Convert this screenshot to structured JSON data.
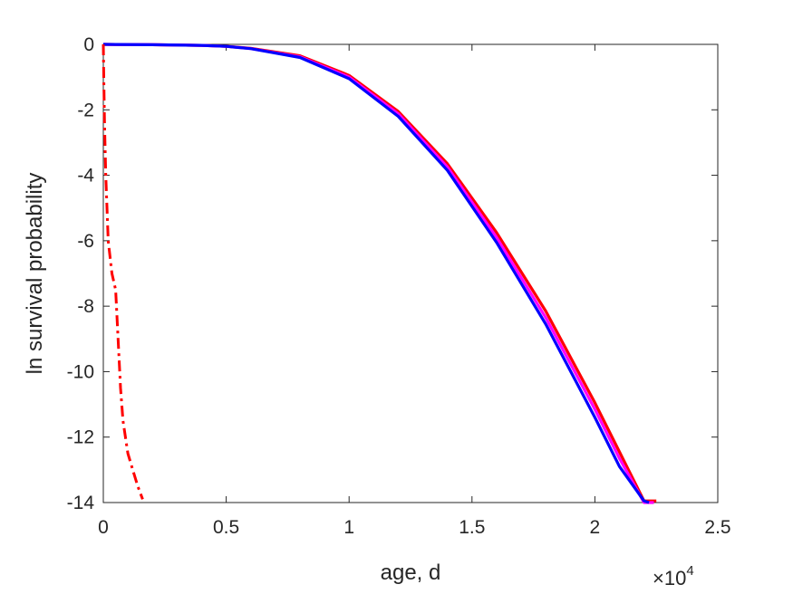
{
  "chart_data": {
    "type": "line",
    "title": "",
    "xlabel": "age, d",
    "ylabel": "ln survival probability",
    "x_multiplier_base": "×10",
    "x_multiplier_exponent": "4",
    "xlim": [
      0,
      25000
    ],
    "ylim": [
      -14,
      0
    ],
    "x_tick_values": [
      0,
      5000,
      10000,
      15000,
      20000,
      25000
    ],
    "x_tick_labels": [
      "0",
      "0.5",
      "1",
      "1.5",
      "2",
      "2.5"
    ],
    "y_tick_values": [
      0,
      -2,
      -4,
      -6,
      -8,
      -10,
      -12,
      -14
    ],
    "y_tick_labels": [
      "0",
      "-2",
      "-4",
      "-6",
      "-8",
      "-10",
      "-12",
      "-14"
    ],
    "grid": false,
    "legend": "none",
    "series": [
      {
        "color": "#ff0000",
        "style": "solid",
        "x": [
          0,
          2000,
          4000,
          5000,
          6000,
          8000,
          10000,
          12000,
          14000,
          16000,
          18000,
          20000,
          21000,
          22000,
          22500
        ],
        "y": [
          0,
          -0.01,
          -0.03,
          -0.06,
          -0.12,
          -0.35,
          -0.95,
          -2.05,
          -3.65,
          -5.75,
          -8.15,
          -10.95,
          -12.45,
          -13.95,
          -13.95
        ]
      },
      {
        "color": "#ff00ff",
        "style": "solid",
        "x": [
          0,
          2000,
          4000,
          5000,
          6000,
          8000,
          10000,
          12000,
          14000,
          16000,
          18000,
          20000,
          21000,
          22000,
          22400
        ],
        "y": [
          0,
          -0.01,
          -0.03,
          -0.06,
          -0.13,
          -0.38,
          -1.0,
          -2.12,
          -3.75,
          -5.9,
          -8.35,
          -11.15,
          -12.65,
          -14.0,
          -14.0
        ]
      },
      {
        "color": "#0000ff",
        "style": "solid",
        "x": [
          0,
          2000,
          4000,
          5000,
          6000,
          8000,
          10000,
          12000,
          14000,
          16000,
          18000,
          20000,
          21000,
          22000,
          22200
        ],
        "y": [
          0,
          -0.01,
          -0.03,
          -0.06,
          -0.13,
          -0.4,
          -1.05,
          -2.2,
          -3.85,
          -6.05,
          -8.55,
          -11.4,
          -12.9,
          -13.95,
          -14.0
        ]
      },
      {
        "color": "#ff0000",
        "style": "dash-dot",
        "x": [
          0,
          20,
          50,
          100,
          200,
          350,
          500,
          600,
          700,
          800,
          1000,
          1200,
          1400,
          1600
        ],
        "y": [
          0,
          -1.0,
          -2.5,
          -4.0,
          -6.0,
          -7.0,
          -7.5,
          -9.0,
          -10.5,
          -11.5,
          -12.5,
          -13.0,
          -13.5,
          -13.9
        ]
      }
    ]
  }
}
